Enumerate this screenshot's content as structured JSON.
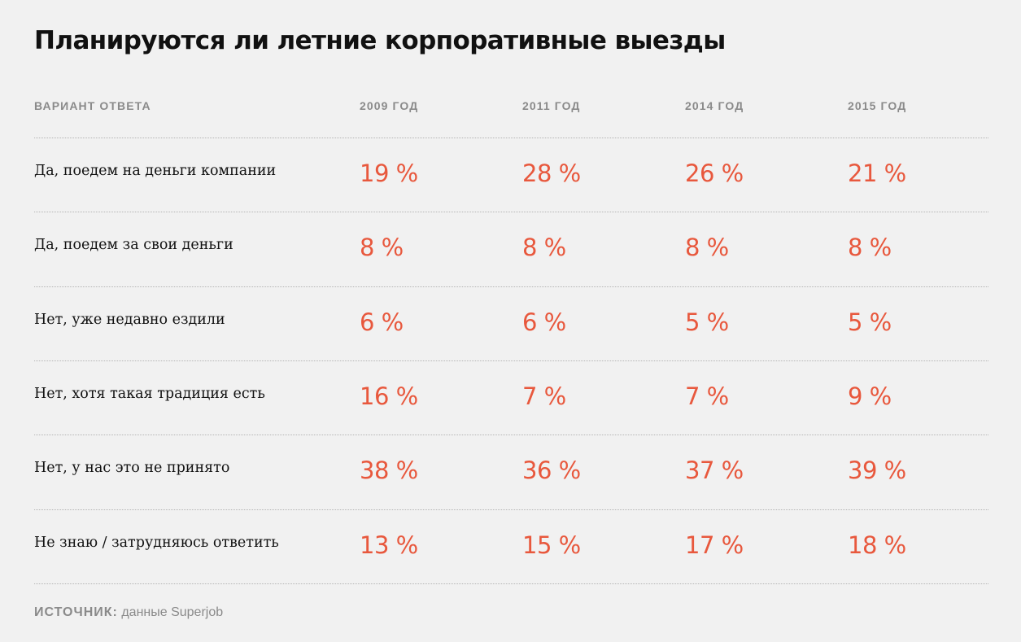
{
  "chart_data": {
    "type": "table",
    "title": "Планируются ли летние корпоративные выезды",
    "columns": [
      "ВАРИАНТ ОТВЕТА",
      "2009 ГОД",
      "2011 ГОД",
      "2014 ГОД",
      "2015 ГОД"
    ],
    "rows": [
      {
        "label": "Да, поедем на деньги компании",
        "values": [
          "19 %",
          "28 %",
          "26 %",
          "21 %"
        ]
      },
      {
        "label": "Да, поедем за свои деньги",
        "values": [
          "8 %",
          "8 %",
          "8 %",
          "8 %"
        ]
      },
      {
        "label": "Нет, уже недавно ездили",
        "values": [
          "6 %",
          "6 %",
          "5 %",
          "5 %"
        ]
      },
      {
        "label": "Нет, хотя такая традиция есть",
        "values": [
          "16 %",
          "7 %",
          "7 %",
          "9 %"
        ]
      },
      {
        "label": "Нет, у нас это не принято",
        "values": [
          "38 %",
          "36 %",
          "37 %",
          "39 %"
        ]
      },
      {
        "label": "Не знаю / затрудняюсь ответить",
        "values": [
          "13 %",
          "15 %",
          "17 %",
          "18 %"
        ]
      }
    ],
    "source_label": "ИСТОЧНИК:",
    "source_text": "данные Superjob"
  },
  "colors": {
    "background": "#f1f1f1",
    "value": "#e8583d",
    "header": "#8a8a8a",
    "text": "#111111",
    "divider": "#b4b4b4"
  }
}
